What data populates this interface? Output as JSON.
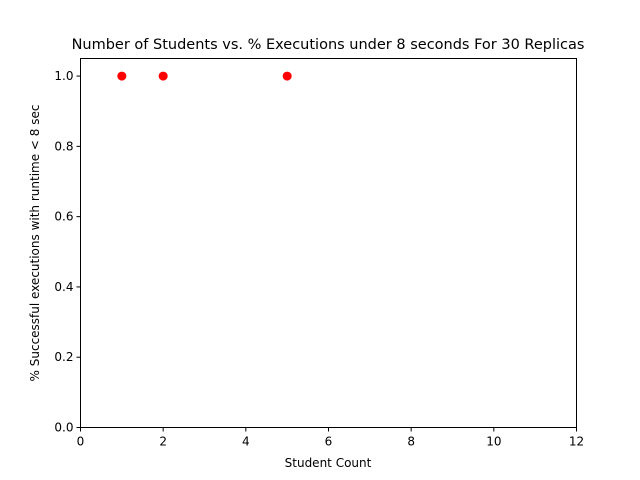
{
  "chart_data": {
    "type": "scatter",
    "title": "Number of Students vs. % Executions under 8 seconds For 30 Replicas",
    "xlabel": "Student Count",
    "ylabel": "% Successful executions with runtime < 8 sec",
    "xlim": [
      0,
      12
    ],
    "ylim": [
      0,
      1.05
    ],
    "xticks": [
      "0",
      "2",
      "4",
      "6",
      "8",
      "10",
      "12"
    ],
    "yticks": [
      "0.0",
      "0.2",
      "0.4",
      "0.6",
      "0.8",
      "1.0"
    ],
    "grid": false,
    "marker_color": "#ff0000",
    "points": [
      {
        "x": 1,
        "y": 1.0
      },
      {
        "x": 2,
        "y": 1.0
      },
      {
        "x": 5,
        "y": 1.0
      }
    ]
  }
}
